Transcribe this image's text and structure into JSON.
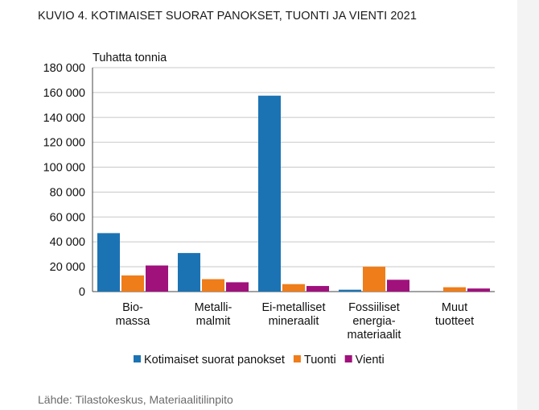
{
  "title": "KUVIO 4. KOTIMAISET SUORAT PANOKSET, TUONTI JA VIENTI 2021",
  "source": "Lähde: Tilastokeskus, Materiaalitilinpito",
  "chart_data": {
    "type": "bar",
    "ylabel": "Tuhatta tonnia",
    "ylim": [
      0,
      180000
    ],
    "yticks": [
      0,
      20000,
      40000,
      60000,
      80000,
      100000,
      120000,
      140000,
      160000,
      180000
    ],
    "ytick_labels": [
      "0",
      "20 000",
      "40 000",
      "60 000",
      "80 000",
      "100 000",
      "120 000",
      "140 000",
      "160 000",
      "180 000"
    ],
    "grid": true,
    "legend_position": "bottom",
    "categories": [
      [
        "Bio-",
        "massa"
      ],
      [
        "Metalli-",
        "malmit"
      ],
      [
        "Ei-metalliset",
        "mineraalit"
      ],
      [
        "Fossiiliset",
        "energia-",
        "materiaalit"
      ],
      [
        "Muut",
        "tuotteet"
      ]
    ],
    "series": [
      {
        "name": "Kotimaiset suorat panokset",
        "color": "#1b73b3",
        "values": [
          47000,
          31000,
          157500,
          1500,
          0
        ]
      },
      {
        "name": "Tuonti",
        "color": "#ee7d1a",
        "values": [
          13000,
          10000,
          6000,
          20000,
          3500
        ]
      },
      {
        "name": "Vienti",
        "color": "#a0117c",
        "values": [
          21000,
          7500,
          4500,
          9500,
          2500
        ]
      }
    ]
  }
}
